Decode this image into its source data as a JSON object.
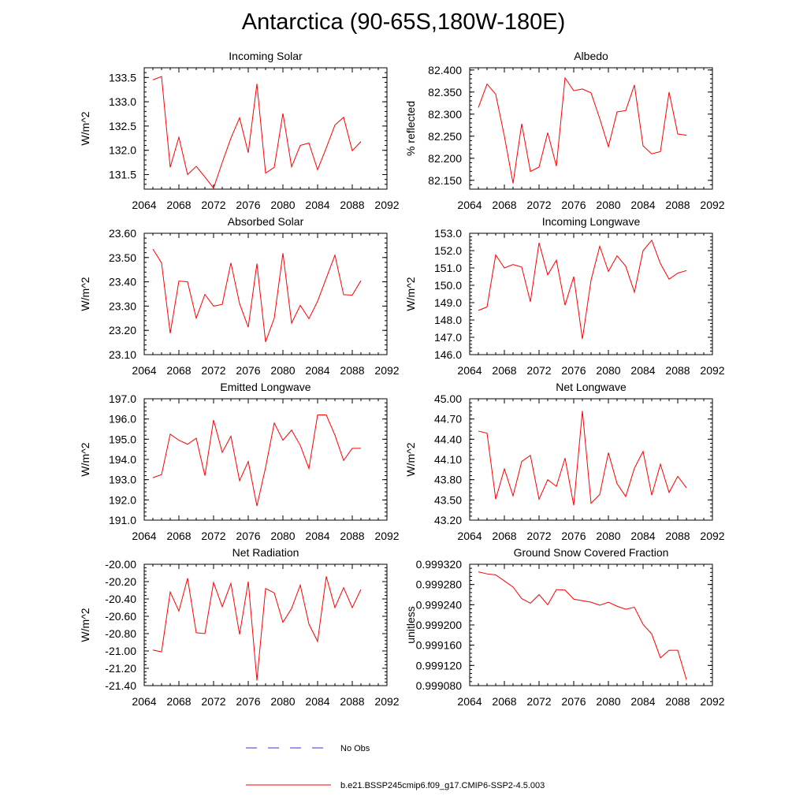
{
  "title": "Antarctica (90-65S,180W-180E)",
  "colors": {
    "model": "#ff0000",
    "obs": "#3333cc",
    "axis": "#000000"
  },
  "legend": {
    "obs_label": "No Obs",
    "model_label": "b.e21.BSSP245cmip6.f09_g17.CMIP6-SSP2-4.5.003"
  },
  "chart_data": [
    {
      "type": "line",
      "title": "Incoming Solar",
      "ylabel": "W/m^2",
      "xlim": [
        2064,
        2092
      ],
      "ylim": [
        131.2,
        133.7
      ],
      "xticks": [
        "2064",
        "2068",
        "2072",
        "2076",
        "2080",
        "2084",
        "2088",
        "2092"
      ],
      "yticks": [
        "131.5",
        "132.0",
        "132.5",
        "133.0",
        "133.5"
      ],
      "x": [
        2065,
        2066,
        2067,
        2068,
        2069,
        2070,
        2071,
        2072,
        2073,
        2074,
        2075,
        2076,
        2077,
        2078,
        2079,
        2080,
        2081,
        2082,
        2083,
        2084,
        2085,
        2086,
        2087,
        2088,
        2089
      ],
      "series": [
        {
          "name": "b.e21.BSSP245cmip6.f09_g17.CMIP6-SSP2-4.5.003",
          "values": [
            133.45,
            133.52,
            131.65,
            132.27,
            131.5,
            131.67,
            131.45,
            131.22,
            131.75,
            132.25,
            132.67,
            131.95,
            133.37,
            131.53,
            131.65,
            132.76,
            131.66,
            132.1,
            132.15,
            131.6,
            132.05,
            132.52,
            132.68,
            131.99,
            132.18
          ]
        }
      ]
    },
    {
      "type": "line",
      "title": "Albedo",
      "ylabel": "% reflected",
      "xlim": [
        2064,
        2092
      ],
      "ylim": [
        82.13,
        82.405
      ],
      "xticks": [
        "2064",
        "2068",
        "2072",
        "2076",
        "2080",
        "2084",
        "2088",
        "2092"
      ],
      "yticks": [
        "82.150",
        "82.200",
        "82.250",
        "82.300",
        "82.350",
        "82.400"
      ],
      "x": [
        2065,
        2066,
        2067,
        2068,
        2069,
        2070,
        2071,
        2072,
        2073,
        2074,
        2075,
        2076,
        2077,
        2078,
        2079,
        2080,
        2081,
        2082,
        2083,
        2084,
        2085,
        2086,
        2087,
        2088,
        2089
      ],
      "series": [
        {
          "name": "b.e21.BSSP245cmip6.f09_g17.CMIP6-SSP2-4.5.003",
          "values": [
            82.315,
            82.368,
            82.345,
            82.25,
            82.143,
            82.278,
            82.17,
            82.18,
            82.258,
            82.182,
            82.382,
            82.353,
            82.357,
            82.348,
            82.29,
            82.226,
            82.305,
            82.308,
            82.366,
            82.228,
            82.21,
            82.215,
            82.35,
            82.255,
            82.252
          ]
        }
      ]
    },
    {
      "type": "line",
      "title": "Absorbed Solar",
      "ylabel": "W/m^2",
      "xlim": [
        2064,
        2092
      ],
      "ylim": [
        23.1,
        23.6
      ],
      "xticks": [
        "2064",
        "2068",
        "2072",
        "2076",
        "2080",
        "2084",
        "2088",
        "2092"
      ],
      "yticks": [
        "23.10",
        "23.20",
        "23.30",
        "23.40",
        "23.50",
        "23.60"
      ],
      "x": [
        2065,
        2066,
        2067,
        2068,
        2069,
        2070,
        2071,
        2072,
        2073,
        2074,
        2075,
        2076,
        2077,
        2078,
        2079,
        2080,
        2081,
        2082,
        2083,
        2084,
        2085,
        2086,
        2087,
        2088,
        2089
      ],
      "series": [
        {
          "name": "b.e21.BSSP245cmip6.f09_g17.CMIP6-SSP2-4.5.003",
          "values": [
            23.535,
            23.478,
            23.188,
            23.403,
            23.4,
            23.25,
            23.348,
            23.3,
            23.307,
            23.478,
            23.31,
            23.213,
            23.475,
            23.152,
            23.25,
            23.518,
            23.23,
            23.303,
            23.248,
            23.32,
            23.415,
            23.51,
            23.347,
            23.345,
            23.405
          ]
        }
      ]
    },
    {
      "type": "line",
      "title": "Incoming Longwave",
      "ylabel": "W/m^2",
      "xlim": [
        2064,
        2092
      ],
      "ylim": [
        146.0,
        153.0
      ],
      "xticks": [
        "2064",
        "2068",
        "2072",
        "2076",
        "2080",
        "2084",
        "2088",
        "2092"
      ],
      "yticks": [
        "146.0",
        "147.0",
        "148.0",
        "149.0",
        "150.0",
        "151.0",
        "152.0",
        "153.0"
      ],
      "x": [
        2065,
        2066,
        2067,
        2068,
        2069,
        2070,
        2071,
        2072,
        2073,
        2074,
        2075,
        2076,
        2077,
        2078,
        2079,
        2080,
        2081,
        2082,
        2083,
        2084,
        2085,
        2086,
        2087,
        2088,
        2089
      ],
      "series": [
        {
          "name": "b.e21.BSSP245cmip6.f09_g17.CMIP6-SSP2-4.5.003",
          "values": [
            148.55,
            148.75,
            151.75,
            151.0,
            151.2,
            151.05,
            149.05,
            152.45,
            150.6,
            151.45,
            148.85,
            150.5,
            146.9,
            150.3,
            152.25,
            150.8,
            151.7,
            151.1,
            149.6,
            152.0,
            152.6,
            151.25,
            150.35,
            150.7,
            150.85
          ]
        }
      ]
    },
    {
      "type": "line",
      "title": "Emitted Longwave",
      "ylabel": "W/m^2",
      "xlim": [
        2064,
        2092
      ],
      "ylim": [
        191.0,
        197.0
      ],
      "xticks": [
        "2064",
        "2068",
        "2072",
        "2076",
        "2080",
        "2084",
        "2088",
        "2092"
      ],
      "yticks": [
        "191.0",
        "192.0",
        "193.0",
        "194.0",
        "195.0",
        "196.0",
        "197.0"
      ],
      "x": [
        2065,
        2066,
        2067,
        2068,
        2069,
        2070,
        2071,
        2072,
        2073,
        2074,
        2075,
        2076,
        2077,
        2078,
        2079,
        2080,
        2081,
        2082,
        2083,
        2084,
        2085,
        2086,
        2087,
        2088,
        2089
      ],
      "series": [
        {
          "name": "b.e21.BSSP245cmip6.f09_g17.CMIP6-SSP2-4.5.003",
          "values": [
            193.1,
            193.25,
            195.25,
            194.95,
            194.75,
            195.05,
            193.2,
            195.95,
            194.35,
            195.15,
            192.95,
            193.9,
            191.7,
            193.6,
            195.8,
            194.95,
            195.45,
            194.7,
            193.55,
            196.2,
            196.2,
            195.2,
            193.95,
            194.55,
            194.55
          ]
        }
      ]
    },
    {
      "type": "line",
      "title": "Net Longwave",
      "ylabel": "W/m^2",
      "xlim": [
        2064,
        2092
      ],
      "ylim": [
        43.2,
        45.0
      ],
      "xticks": [
        "2064",
        "2068",
        "2072",
        "2076",
        "2080",
        "2084",
        "2088",
        "2092"
      ],
      "yticks": [
        "43.20",
        "43.50",
        "43.80",
        "44.10",
        "44.40",
        "44.70",
        "45.00"
      ],
      "x": [
        2065,
        2066,
        2067,
        2068,
        2069,
        2070,
        2071,
        2072,
        2073,
        2074,
        2075,
        2076,
        2077,
        2078,
        2079,
        2080,
        2081,
        2082,
        2083,
        2084,
        2085,
        2086,
        2087,
        2088,
        2089
      ],
      "series": [
        {
          "name": "b.e21.BSSP245cmip6.f09_g17.CMIP6-SSP2-4.5.003",
          "values": [
            44.52,
            44.49,
            43.51,
            43.96,
            43.56,
            44.07,
            44.16,
            43.51,
            43.8,
            43.7,
            44.12,
            43.42,
            44.82,
            43.45,
            43.58,
            44.2,
            43.74,
            43.55,
            43.97,
            44.22,
            43.57,
            44.03,
            43.61,
            43.85,
            43.68
          ]
        }
      ]
    },
    {
      "type": "line",
      "title": "Net Radiation",
      "ylabel": "W/m^2",
      "xlim": [
        2064,
        2092
      ],
      "ylim": [
        -21.4,
        -20.0
      ],
      "xticks": [
        "2064",
        "2068",
        "2072",
        "2076",
        "2080",
        "2084",
        "2088",
        "2092"
      ],
      "yticks": [
        "-21.40",
        "-21.20",
        "-21.00",
        "-20.80",
        "-20.60",
        "-20.40",
        "-20.20",
        "-20.00"
      ],
      "x": [
        2065,
        2066,
        2067,
        2068,
        2069,
        2070,
        2071,
        2072,
        2073,
        2074,
        2075,
        2076,
        2077,
        2078,
        2079,
        2080,
        2081,
        2082,
        2083,
        2084,
        2085,
        2086,
        2087,
        2088,
        2089
      ],
      "series": [
        {
          "name": "b.e21.BSSP245cmip6.f09_g17.CMIP6-SSP2-4.5.003",
          "values": [
            -20.99,
            -21.01,
            -20.32,
            -20.54,
            -20.16,
            -20.79,
            -20.8,
            -20.21,
            -20.49,
            -20.22,
            -20.81,
            -20.2,
            -21.34,
            -20.28,
            -20.33,
            -20.67,
            -20.51,
            -20.24,
            -20.69,
            -20.89,
            -20.14,
            -20.5,
            -20.27,
            -20.5,
            -20.29
          ]
        }
      ]
    },
    {
      "type": "line",
      "title": "Ground Snow Covered Fraction",
      "ylabel": "unitless",
      "xlim": [
        2064,
        2092
      ],
      "ylim": [
        0.99908,
        0.99932
      ],
      "xticks": [
        "2064",
        "2068",
        "2072",
        "2076",
        "2080",
        "2084",
        "2088",
        "2092"
      ],
      "yticks": [
        "0.999080",
        "0.999120",
        "0.999160",
        "0.999200",
        "0.999240",
        "0.999280",
        "0.999320"
      ],
      "x": [
        2065,
        2066,
        2067,
        2068,
        2069,
        2070,
        2071,
        2072,
        2073,
        2074,
        2075,
        2076,
        2077,
        2078,
        2079,
        2080,
        2081,
        2082,
        2083,
        2084,
        2085,
        2086,
        2087,
        2088,
        2089
      ],
      "series": [
        {
          "name": "b.e21.BSSP245cmip6.f09_g17.CMIP6-SSP2-4.5.003",
          "values": [
            0.999305,
            0.999301,
            0.999299,
            0.999287,
            0.999275,
            0.999252,
            0.999243,
            0.99926,
            0.99924,
            0.99927,
            0.999269,
            0.999251,
            0.999248,
            0.999245,
            0.999239,
            0.999245,
            0.999237,
            0.999231,
            0.999235,
            0.999201,
            0.999182,
            0.999135,
            0.99915,
            0.99915,
            0.999092
          ]
        }
      ]
    }
  ]
}
